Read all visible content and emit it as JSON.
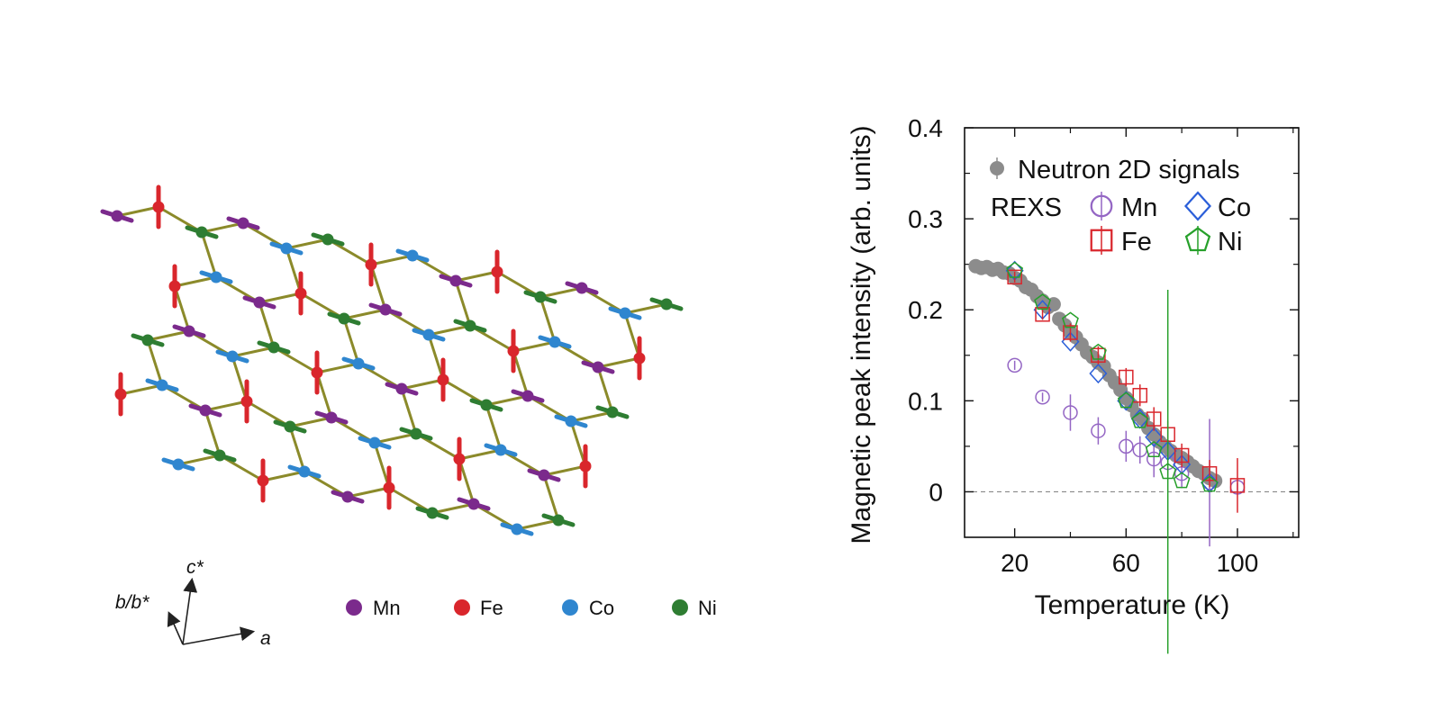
{
  "structure": {
    "legend": [
      {
        "label": "Mn",
        "color": "#7b2a8c"
      },
      {
        "label": "Fe",
        "color": "#d9262c"
      },
      {
        "label": "Co",
        "color": "#2f86cf"
      },
      {
        "label": "Ni",
        "color": "#2e7d32"
      }
    ],
    "axes": {
      "a": "a",
      "c": "c*",
      "b": "b/b*"
    }
  },
  "chart_data": {
    "type": "scatter",
    "xlabel": "Temperature (K)",
    "ylabel": "Magnetic peak intensity (arb. units)",
    "xlim": [
      2,
      122
    ],
    "ylim": [
      -0.05,
      0.4
    ],
    "xticks": [
      20,
      60,
      100
    ],
    "yticks": [
      0,
      0.1,
      0.2,
      0.3,
      0.4
    ],
    "ytick_labels": [
      "0",
      "0.1",
      "0.2",
      "0.3",
      "0.4"
    ],
    "grid": false,
    "zero_line": true,
    "legend_placement": "top",
    "legend_group_label": "REXS",
    "series": [
      {
        "name": "Neutron 2D signals",
        "marker": "filled-circle",
        "color": "#8c8c8c",
        "x": [
          6,
          8,
          10,
          12,
          14,
          16,
          18,
          20,
          22,
          24,
          26,
          28,
          30,
          32,
          34,
          36,
          38,
          40,
          42,
          44,
          46,
          48,
          50,
          52,
          54,
          56,
          58,
          60,
          62,
          64,
          66,
          68,
          70,
          72,
          74,
          76,
          78,
          80,
          82,
          84,
          86,
          88,
          90,
          92
        ],
        "y": [
          0.248,
          0.246,
          0.247,
          0.244,
          0.245,
          0.241,
          0.24,
          0.235,
          0.232,
          0.225,
          0.222,
          0.215,
          0.21,
          0.203,
          0.206,
          0.19,
          0.183,
          0.175,
          0.17,
          0.162,
          0.153,
          0.148,
          0.142,
          0.138,
          0.128,
          0.12,
          0.112,
          0.103,
          0.095,
          0.085,
          0.08,
          0.07,
          0.063,
          0.055,
          0.05,
          0.045,
          0.04,
          0.037,
          0.033,
          0.028,
          0.023,
          0.02,
          0.015,
          0.012
        ],
        "err": []
      },
      {
        "name": "Mn",
        "marker": "open-circle",
        "color": "#9466c4",
        "x": [
          20,
          30,
          40,
          50,
          60,
          65,
          70,
          75,
          80,
          90,
          100
        ],
        "y": [
          0.139,
          0.104,
          0.087,
          0.067,
          0.05,
          0.046,
          0.036,
          0.032,
          0.02,
          0.01,
          0.005
        ],
        "err": [
          0.005,
          0.005,
          0.02,
          0.015,
          0.017,
          0.015,
          0.02,
          0.015,
          0.016,
          0.07,
          0.005
        ]
      },
      {
        "name": "Co",
        "marker": "open-diamond",
        "color": "#2b5fd9",
        "x": [
          20,
          30,
          40,
          50,
          60,
          65,
          70,
          75,
          80,
          90
        ],
        "y": [
          0.243,
          0.2,
          0.165,
          0.13,
          0.1,
          0.08,
          0.06,
          0.045,
          0.03,
          0.01
        ],
        "err": [
          0,
          0,
          0,
          0,
          0,
          0,
          0,
          0,
          0,
          0
        ]
      },
      {
        "name": "Fe",
        "marker": "open-square",
        "color": "#d9262c",
        "x": [
          20,
          30,
          40,
          50,
          60,
          65,
          70,
          75,
          80,
          90,
          100
        ],
        "y": [
          0.236,
          0.195,
          0.175,
          0.15,
          0.126,
          0.106,
          0.08,
          0.063,
          0.04,
          0.02,
          0.007
        ],
        "err": [
          0.006,
          0.006,
          0.01,
          0.01,
          0.01,
          0.012,
          0.013,
          0.015,
          0.013,
          0.015,
          0.03
        ]
      },
      {
        "name": "Ni",
        "marker": "open-pentagon",
        "color": "#27a02b",
        "x": [
          20,
          30,
          40,
          50,
          60,
          65,
          70,
          75,
          80,
          90
        ],
        "y": [
          0.243,
          0.208,
          0.188,
          0.153,
          0.1,
          0.078,
          0.046,
          0.022,
          0.012,
          0.008
        ],
        "err": [
          0,
          0,
          0,
          0,
          0,
          0,
          0,
          0.2,
          0,
          0
        ]
      }
    ]
  }
}
